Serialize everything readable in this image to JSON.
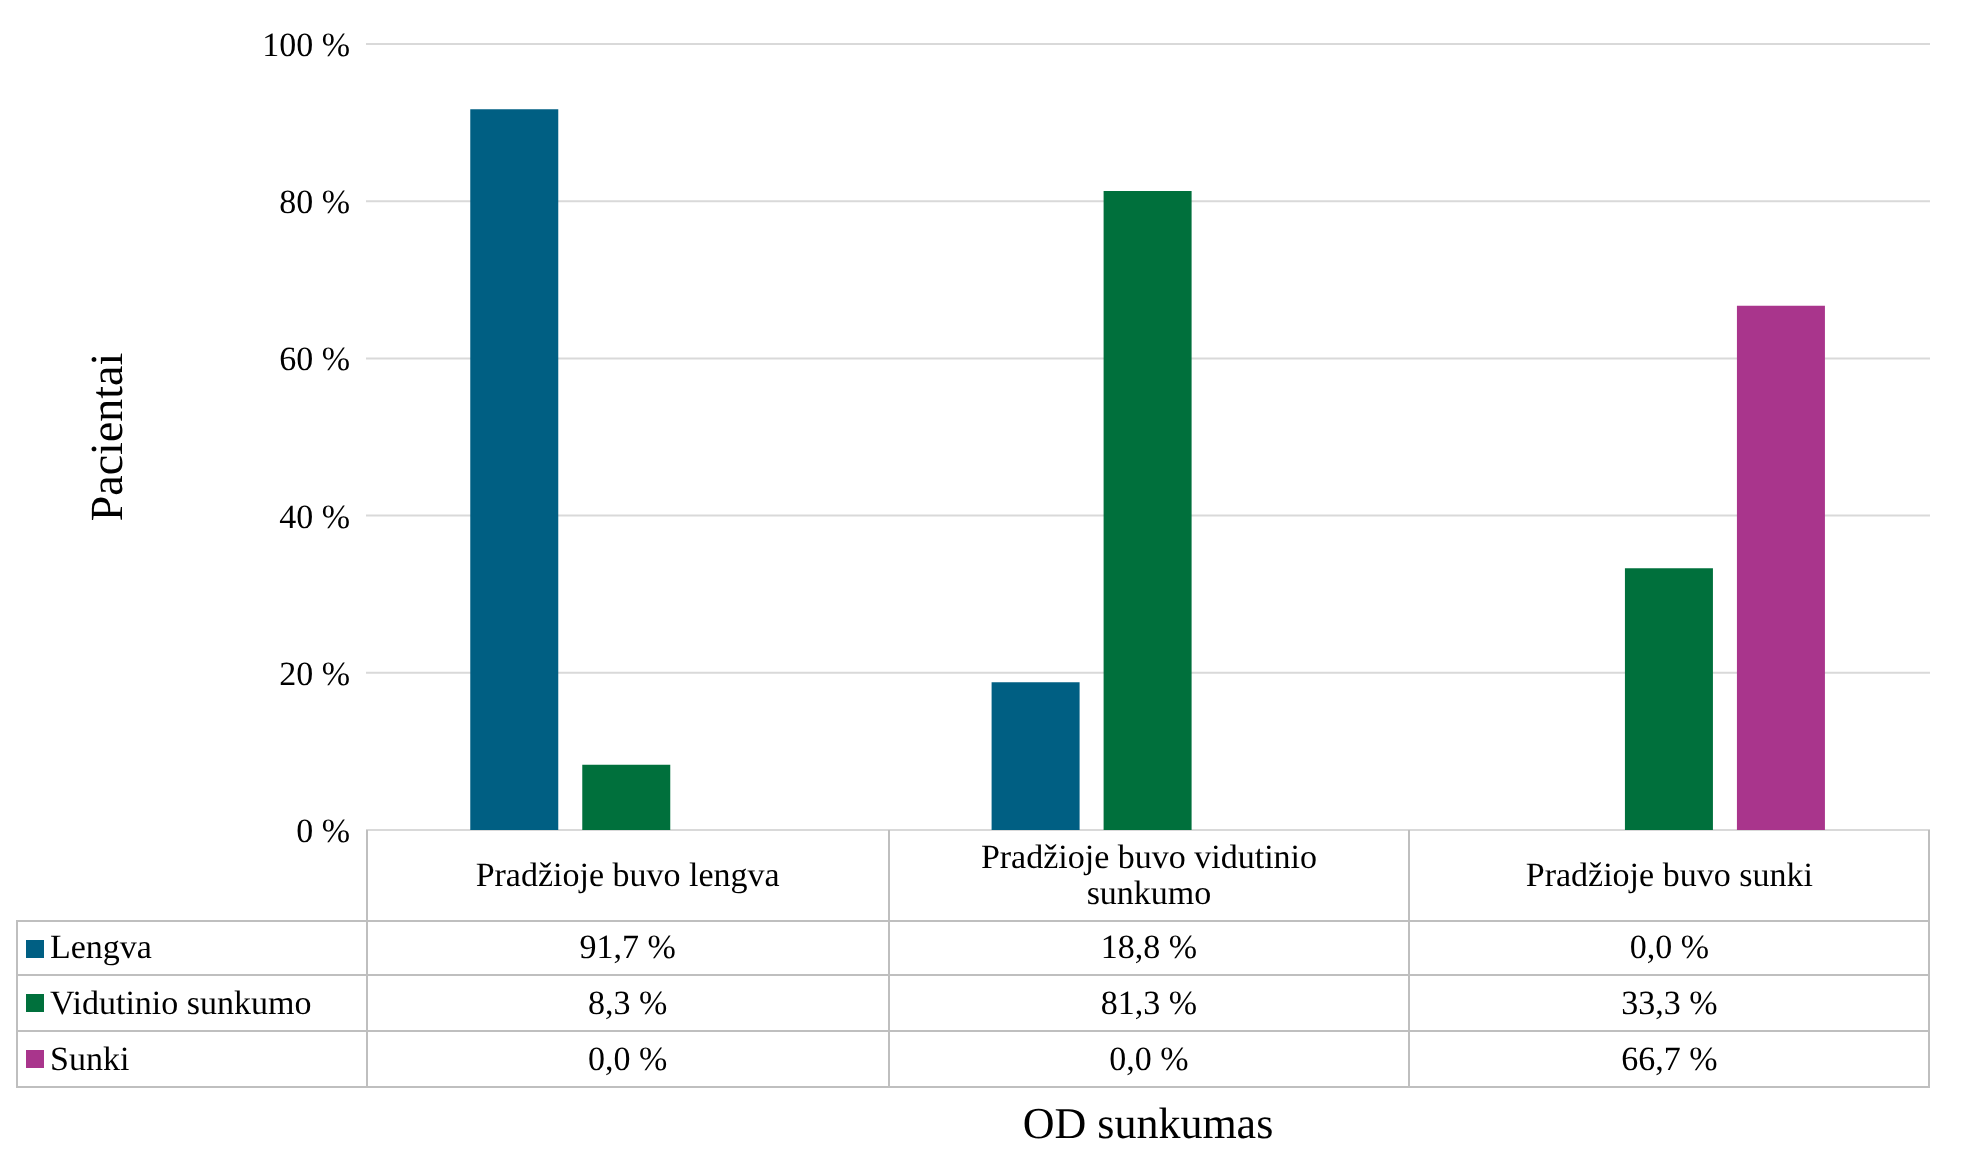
{
  "chart_data": {
    "type": "bar",
    "xlabel": "OD sunkumas",
    "ylabel": "Pacientai",
    "categories": [
      "Pradžioje buvo lengva",
      "Pradžioje buvo vidutinio sunkumo",
      "Pradžioje buvo sunki"
    ],
    "series": [
      {
        "name": "Lengva",
        "color": "#005f83",
        "values": [
          91.7,
          18.8,
          0.0
        ],
        "value_labels": [
          "91,7 %",
          "18,8 %",
          "0,0 %"
        ]
      },
      {
        "name": "Vidutinio sunkumo",
        "color": "#00703c",
        "values": [
          8.3,
          81.3,
          33.3
        ],
        "value_labels": [
          "8,3 %",
          "81,3 %",
          "33,3 %"
        ]
      },
      {
        "name": "Sunki",
        "color": "#a9358c",
        "values": [
          0.0,
          0.0,
          66.7
        ],
        "value_labels": [
          "0,0 %",
          "0,0 %",
          "66,7 %"
        ]
      }
    ],
    "ylim": [
      0,
      100
    ],
    "yticks": [
      {
        "value": 0,
        "label": "0 %"
      },
      {
        "value": 20,
        "label": "20 %"
      },
      {
        "value": 40,
        "label": "40 %"
      },
      {
        "value": 60,
        "label": "60 %"
      },
      {
        "value": 80,
        "label": "80 %"
      },
      {
        "value": 100,
        "label": "100 %"
      }
    ],
    "grid": "y",
    "legend": "bottom"
  }
}
